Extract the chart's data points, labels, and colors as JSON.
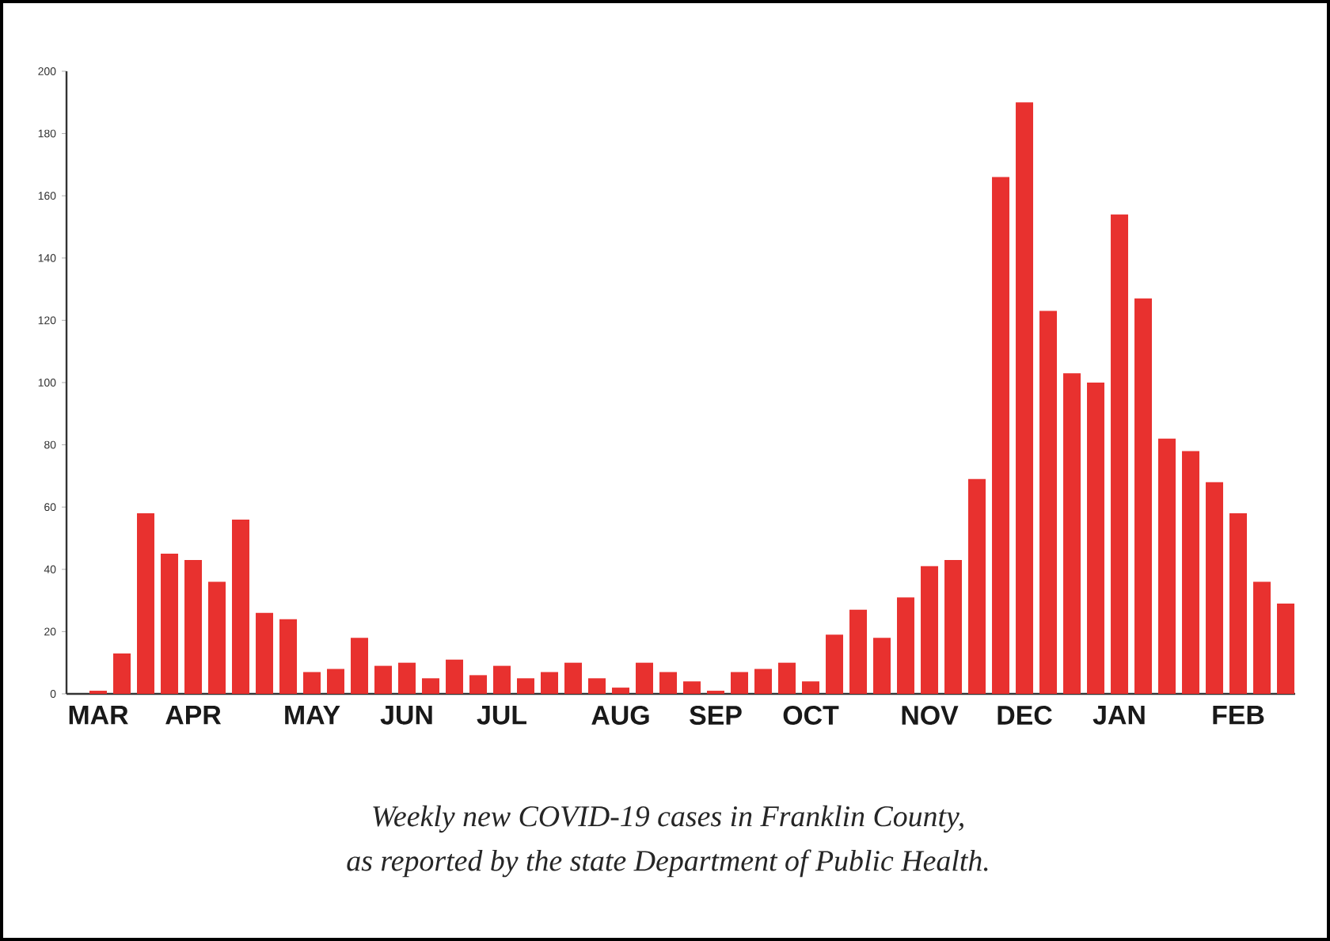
{
  "chart_data": {
    "type": "bar",
    "categories": [
      null,
      "MAR",
      null,
      null,
      null,
      "APR",
      null,
      null,
      null,
      null,
      "MAY",
      null,
      null,
      null,
      "JUN",
      null,
      null,
      null,
      "JUL",
      null,
      null,
      null,
      null,
      "AUG",
      null,
      null,
      null,
      "SEP",
      null,
      null,
      null,
      "OCT",
      null,
      null,
      null,
      null,
      "NOV",
      null,
      null,
      null,
      "DEC",
      null,
      null,
      null,
      "JAN",
      null,
      null,
      null,
      null,
      "FEB",
      null,
      null
    ],
    "values": [
      0,
      1,
      13,
      58,
      45,
      43,
      36,
      56,
      26,
      24,
      7,
      8,
      18,
      9,
      10,
      5,
      11,
      6,
      9,
      5,
      7,
      10,
      5,
      2,
      10,
      7,
      4,
      1,
      7,
      8,
      10,
      4,
      19,
      27,
      18,
      31,
      41,
      43,
      69,
      166,
      190,
      123,
      103,
      100,
      154,
      127,
      82,
      78,
      68,
      58,
      36,
      29
    ],
    "color": "#e8312f",
    "ylim": [
      0,
      200
    ],
    "yticks": [
      0,
      20,
      40,
      60,
      80,
      100,
      120,
      140,
      160,
      180,
      200
    ],
    "grid": false,
    "annotations": [
      "Weekly new COVID-19 cases in Franklin County,",
      "as reported by the state Department of  Public Health."
    ]
  }
}
